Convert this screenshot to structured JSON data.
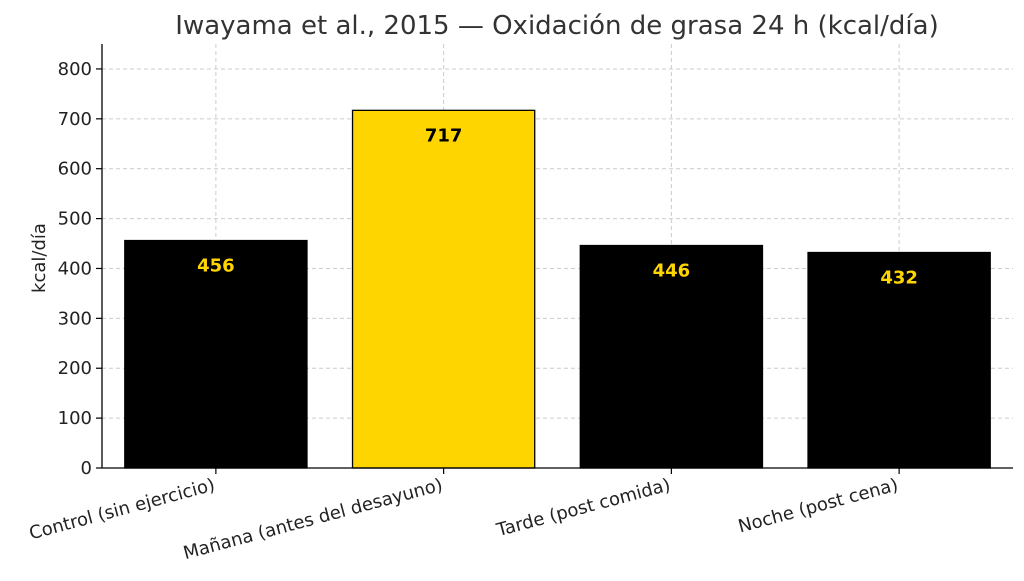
{
  "chart_data": {
    "type": "bar",
    "title": "Iwayama et al., 2015 — Oxidación de grasa 24 h (kcal/día)",
    "ylabel": "kcal/día",
    "xlabel": "",
    "categories": [
      "Control (sin ejercicio)",
      "Mañana (antes del desayuno)",
      "Tarde (post comida)",
      "Noche (post cena)"
    ],
    "values": [
      456,
      717,
      446,
      432
    ],
    "data_labels": [
      "456",
      "717",
      "446",
      "432"
    ],
    "bar_colors": [
      "#000000",
      "#FFD500",
      "#000000",
      "#000000"
    ],
    "label_colors": [
      "#FFD500",
      "#000000",
      "#FFD500",
      "#FFD500"
    ],
    "ylim": [
      0,
      850
    ],
    "yticks": [
      0,
      100,
      200,
      300,
      400,
      500,
      600,
      700,
      800
    ],
    "grid": true,
    "legend": "none"
  }
}
